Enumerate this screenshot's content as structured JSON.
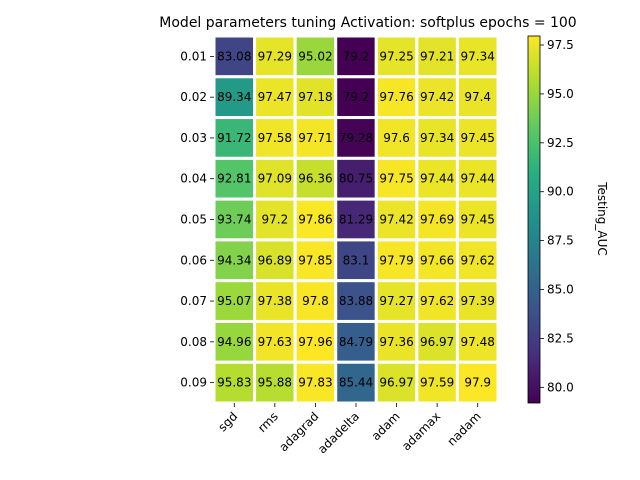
{
  "chart_data": {
    "type": "heatmap",
    "title": "Model parameters tuning Activation: softplus epochs = 100",
    "colorbar_label": "Testing_AUC",
    "colormap": "viridis",
    "x_categories": [
      "sgd",
      "rms",
      "adagrad",
      "adadelta",
      "adam",
      "adamax",
      "nadam"
    ],
    "y_categories": [
      "0.01",
      "0.02",
      "0.03",
      "0.04",
      "0.05",
      "0.06",
      "0.07",
      "0.08",
      "0.09"
    ],
    "values": [
      [
        "83.08",
        "97.29",
        "95.02",
        "79.2",
        "97.25",
        "97.21",
        "97.34"
      ],
      [
        "89.34",
        "97.47",
        "97.18",
        "79.2",
        "97.76",
        "97.42",
        "97.4"
      ],
      [
        "91.72",
        "97.58",
        "97.71",
        "79.28",
        "97.6",
        "97.34",
        "97.45"
      ],
      [
        "92.81",
        "97.09",
        "96.36",
        "80.75",
        "97.75",
        "97.44",
        "97.44"
      ],
      [
        "93.74",
        "97.2",
        "97.86",
        "81.29",
        "97.42",
        "97.69",
        "97.45"
      ],
      [
        "94.34",
        "96.89",
        "97.85",
        "83.1",
        "97.79",
        "97.66",
        "97.62"
      ],
      [
        "95.07",
        "97.38",
        "97.8",
        "83.88",
        "97.27",
        "97.62",
        "97.39"
      ],
      [
        "94.96",
        "97.63",
        "97.96",
        "84.79",
        "97.36",
        "96.97",
        "97.48"
      ],
      [
        "95.83",
        "95.88",
        "97.83",
        "85.44",
        "96.97",
        "97.59",
        "97.9"
      ]
    ],
    "color_range": [
      79.2,
      97.96
    ],
    "colorbar_ticks": [
      "80.0",
      "82.5",
      "85.0",
      "87.5",
      "90.0",
      "92.5",
      "95.0",
      "97.5"
    ],
    "grid": false,
    "cell_border_color": "#ffffff"
  }
}
